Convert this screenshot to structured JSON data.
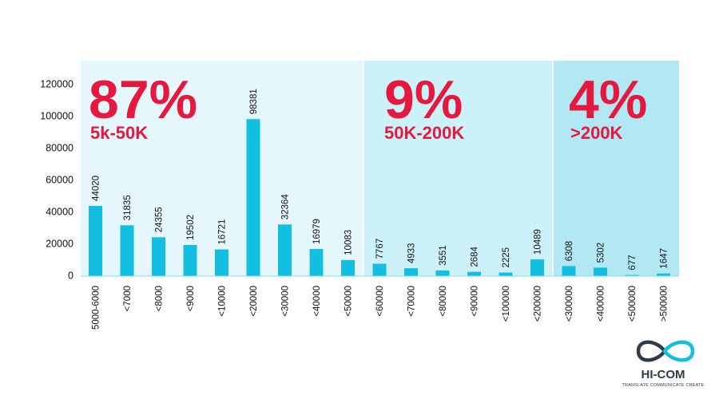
{
  "chart_data": {
    "type": "bar",
    "categories": [
      "5000-6000",
      "<7000",
      "<8000",
      "<9000",
      "<10000",
      "<20000",
      "<30000",
      "<40000",
      "<50000",
      "<60000",
      "<70000",
      "<80000",
      "<90000",
      "<100000",
      "<200000",
      "<300000",
      "<400000",
      "<500000",
      ">500000"
    ],
    "values": [
      44020,
      31835,
      24355,
      19502,
      16721,
      98381,
      32364,
      16979,
      10083,
      7767,
      4933,
      3551,
      2684,
      2225,
      10489,
      6308,
      5302,
      677,
      1647
    ],
    "data_labels": [
      "44020",
      "31835",
      "24355",
      "19502",
      "16721",
      "98381",
      "32364",
      "16979",
      "10083",
      "7767",
      "4933",
      "3551",
      "2684",
      "2225",
      "10489",
      "6308",
      "5302",
      "677",
      "1647"
    ],
    "y_ticks": [
      0,
      20000,
      40000,
      60000,
      80000,
      100000,
      120000
    ],
    "ylim": [
      0,
      130000
    ],
    "title": "",
    "xlabel": "",
    "ylabel": "",
    "grid": false,
    "bar_color": "#12bfe0",
    "regions": [
      {
        "name": "low",
        "percent": "87%",
        "range_label": "5k-50K",
        "from_index": 0,
        "to_index": 8,
        "background": "#e5f7fc"
      },
      {
        "name": "mid",
        "percent": "9%",
        "range_label": "50K-200K",
        "from_index": 9,
        "to_index": 14,
        "background": "#cdf1f9"
      },
      {
        "name": "high",
        "percent": "4%",
        "range_label": ">200K",
        "from_index": 15,
        "to_index": 18,
        "background": "#b1e8f4"
      }
    ],
    "highlight_color": "#e5193e"
  },
  "logo": {
    "name": "HI-COM",
    "tagline": "TRANSLATE COMMUNICATE CREATE",
    "color": "#2f3b46",
    "accent": "#12bfe0"
  }
}
